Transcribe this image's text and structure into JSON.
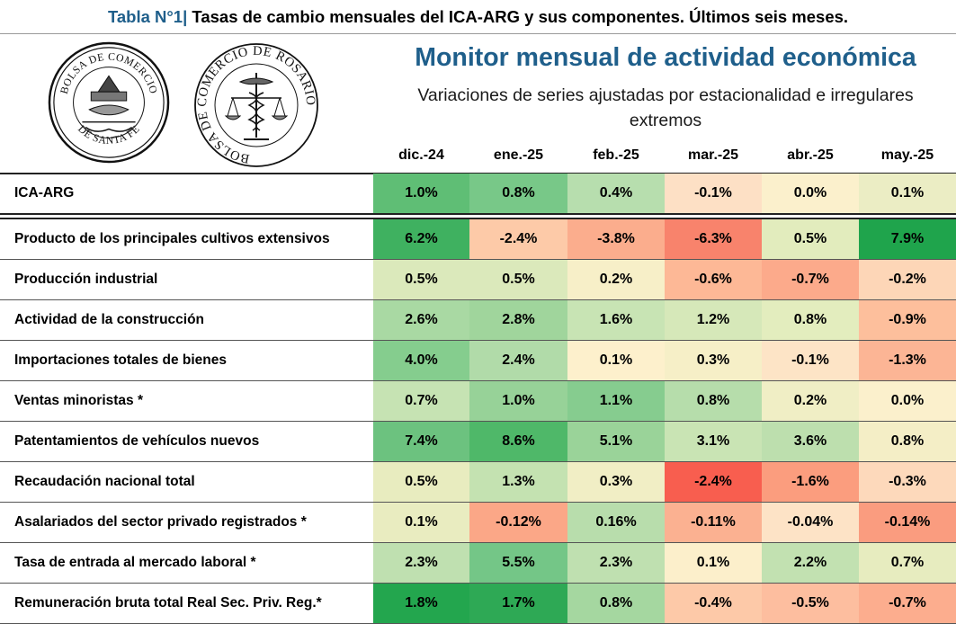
{
  "caption": {
    "lead": "Tabla N°1|",
    "text": " Tasas de cambio mensuales del ICA-ARG y sus componentes. Últimos seis meses."
  },
  "logos": {
    "seal1": {
      "top": "BOLSA DE COMERCIO",
      "bottom": "DE SANTA FE"
    },
    "seal2": {
      "text": "BOLSA DE COMERCIO DE ROSARIO"
    }
  },
  "title": "Monitor mensual de actividad económica",
  "subtitle": "Variaciones de series ajustadas por estacionalidad e irregulares extremos",
  "months": [
    "dic.-24",
    "ene.-25",
    "feb.-25",
    "mar.-25",
    "abr.-25",
    "may.-25"
  ],
  "rows": [
    {
      "label": "ICA-ARG",
      "values": [
        "1.0%",
        "0.8%",
        "0.4%",
        "-0.1%",
        "0.0%",
        "0.1%"
      ],
      "colors": [
        "#5fbe75",
        "#78c888",
        "#b7deae",
        "#fde0c5",
        "#fbf0cc",
        "#ebedc4"
      ]
    },
    {
      "label": "Producto de los principales cultivos extensivos",
      "values": [
        "6.2%",
        "-2.4%",
        "-3.8%",
        "-6.3%",
        "0.5%",
        "7.9%"
      ],
      "colors": [
        "#3fb160",
        "#fdcaa8",
        "#fbad8d",
        "#f8836c",
        "#e2ecbd",
        "#1fa44c"
      ]
    },
    {
      "label": "Producción industrial",
      "values": [
        "0.5%",
        "0.5%",
        "0.2%",
        "-0.6%",
        "-0.7%",
        "-0.2%"
      ],
      "colors": [
        "#dbe9bb",
        "#dbe9bb",
        "#f7efc8",
        "#fdb896",
        "#fcaa8b",
        "#fdd6b7"
      ]
    },
    {
      "label": "Actividad de la construcción",
      "values": [
        "2.6%",
        "2.8%",
        "1.6%",
        "1.2%",
        "0.8%",
        "-0.9%"
      ],
      "colors": [
        "#a9d9a3",
        "#a0d59c",
        "#c8e4b4",
        "#d6e8b9",
        "#e3edbe",
        "#fdbf9c"
      ]
    },
    {
      "label": "Importaciones totales de bienes",
      "values": [
        "4.0%",
        "2.4%",
        "0.1%",
        "0.3%",
        "-0.1%",
        "-1.3%"
      ],
      "colors": [
        "#85cd8e",
        "#b1dba9",
        "#fdf0cc",
        "#f6efc7",
        "#fde4c6",
        "#fcb595"
      ]
    },
    {
      "label": "Ventas minoristas *",
      "values": [
        "0.7%",
        "1.0%",
        "1.1%",
        "0.8%",
        "0.2%",
        "0.0%"
      ],
      "colors": [
        "#c6e3b3",
        "#97d298",
        "#86cc8f",
        "#b6ddab",
        "#f0eec5",
        "#fbf0cc"
      ]
    },
    {
      "label": "Patentamientos de vehículos nuevos",
      "values": [
        "7.4%",
        "8.6%",
        "5.1%",
        "3.1%",
        "3.6%",
        "0.8%"
      ],
      "colors": [
        "#6cc27f",
        "#4fb869",
        "#9ad399",
        "#c9e4b4",
        "#bddfae",
        "#f4eec6"
      ]
    },
    {
      "label": "Recaudación nacional total",
      "values": [
        "0.5%",
        "1.3%",
        "0.3%",
        "-2.4%",
        "-1.6%",
        "-0.3%"
      ],
      "colors": [
        "#e8ecbf",
        "#c4e2b1",
        "#f1eec5",
        "#f85e4f",
        "#fb9d7e",
        "#fdd9bb"
      ]
    },
    {
      "label": "Asalariados del sector privado registrados *",
      "values": [
        "0.1%",
        "-0.12%",
        "0.16%",
        "-0.11%",
        "-0.04%",
        "-0.14%"
      ],
      "colors": [
        "#e9ecc0",
        "#fba787",
        "#b8ddac",
        "#fbb191",
        "#fde3c6",
        "#fa9c7f"
      ]
    },
    {
      "label": "Tasa de entrada al mercado laboral *",
      "values": [
        "2.3%",
        "5.5%",
        "2.3%",
        "0.1%",
        "2.2%",
        "0.7%"
      ],
      "colors": [
        "#bfe0b0",
        "#74c687",
        "#bfe0b0",
        "#fcefcb",
        "#c2e1b1",
        "#e7ecbf"
      ]
    },
    {
      "label": "Remuneración bruta total Real Sec. Priv. Reg.*",
      "values": [
        "1.8%",
        "1.7%",
        "0.8%",
        "-0.4%",
        "-0.5%",
        "-0.7%"
      ],
      "colors": [
        "#23a64e",
        "#2ea955",
        "#a5d7a0",
        "#fdc9a8",
        "#fdbe9f",
        "#fcad8e"
      ]
    }
  ]
}
